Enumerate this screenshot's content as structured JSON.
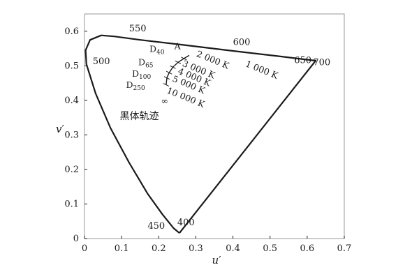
{
  "chart_data": {
    "type": "line",
    "title": "",
    "xlabel": "u′",
    "ylabel": "v′",
    "xlim": [
      0,
      0.7
    ],
    "ylim": [
      0,
      0.65
    ],
    "x_ticks": [
      "0",
      "0.1",
      "0.2",
      "0.3",
      "0.4",
      "0.5",
      "0.6",
      "0.7"
    ],
    "y_ticks": [
      "0",
      "0.1",
      "0.2",
      "0.3",
      "0.4",
      "0.5",
      "0.6"
    ],
    "series": [
      {
        "points": [
          [
            0.256,
            0.016
          ],
          [
            0.24,
            0.03
          ],
          [
            0.21,
            0.07
          ],
          [
            0.17,
            0.13
          ],
          [
            0.12,
            0.22
          ],
          [
            0.07,
            0.32
          ],
          [
            0.03,
            0.42
          ],
          [
            0.005,
            0.505
          ],
          [
            0.003,
            0.545
          ],
          [
            0.015,
            0.575
          ],
          [
            0.045,
            0.588
          ],
          [
            0.08,
            0.585
          ],
          [
            0.15,
            0.575
          ],
          [
            0.27,
            0.56
          ],
          [
            0.4,
            0.543
          ],
          [
            0.52,
            0.528
          ],
          [
            0.62,
            0.515
          ],
          [
            0.623,
            0.515
          ],
          [
            0.256,
            0.016
          ]
        ]
      },
      {
        "name": "黑体轨迹",
        "points": [
          [
            0.282,
            0.53
          ],
          [
            0.268,
            0.521
          ],
          [
            0.252,
            0.51
          ],
          [
            0.238,
            0.496
          ],
          [
            0.228,
            0.48
          ],
          [
            0.222,
            0.465
          ],
          [
            0.22,
            0.445
          ]
        ]
      }
    ],
    "wavelength_labels": [
      {
        "text": "550",
        "x": 0.12,
        "y": 0.6
      },
      {
        "text": "600",
        "x": 0.4,
        "y": 0.56
      },
      {
        "text": "650",
        "x": 0.565,
        "y": 0.508
      },
      {
        "text": "700",
        "x": 0.616,
        "y": 0.502
      },
      {
        "text": "500",
        "x": 0.022,
        "y": 0.505
      },
      {
        "text": "450",
        "x": 0.17,
        "y": 0.028
      },
      {
        "text": "400",
        "x": 0.25,
        "y": 0.038
      }
    ],
    "illuminant_labels": [
      {
        "main": "D",
        "sub": "40",
        "x": 0.175,
        "y": 0.54
      },
      {
        "main": "A",
        "sub": "",
        "x": 0.242,
        "y": 0.548
      },
      {
        "main": "D",
        "sub": "65",
        "x": 0.145,
        "y": 0.502
      },
      {
        "main": "D",
        "sub": "100",
        "x": 0.128,
        "y": 0.468
      },
      {
        "main": "D",
        "sub": "250",
        "x": 0.112,
        "y": 0.436
      }
    ],
    "ct_labels": [
      {
        "text": "2 000 K",
        "x": 0.3,
        "y": 0.528,
        "rotate": 22
      },
      {
        "text": "3 000 K",
        "x": 0.262,
        "y": 0.5,
        "rotate": 22
      },
      {
        "text": "4 000 K",
        "x": 0.25,
        "y": 0.478,
        "rotate": 22
      },
      {
        "text": "5 000 K",
        "x": 0.235,
        "y": 0.456,
        "rotate": 22
      },
      {
        "text": "10 000 K",
        "x": 0.22,
        "y": 0.422,
        "rotate": 22
      },
      {
        "text": "1 000 K",
        "x": 0.432,
        "y": 0.499,
        "rotate": 22
      },
      {
        "text": "∞",
        "x": 0.206,
        "y": 0.39,
        "rotate": 0
      }
    ],
    "annotation": {
      "text": "黑体轨迹",
      "x": 0.095,
      "y": 0.345
    }
  }
}
